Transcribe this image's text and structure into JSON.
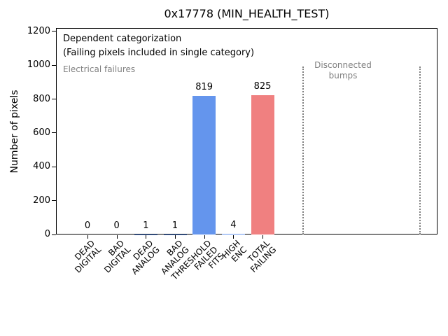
{
  "chart_data": {
    "type": "bar",
    "title": "0x17778 (MIN_HEALTH_TEST)",
    "xlabel": "",
    "ylabel": "Number of pixels",
    "categories": [
      "DEAD\nDIGITAL",
      "BAD\nDIGITAL",
      "DEAD\nANALOG",
      "BAD\nANALOG",
      "THRESHOLD\nFAILED\nFITS",
      "HIGH\nENC",
      "TOTAL\nFAILING"
    ],
    "values": [
      0,
      0,
      1,
      1,
      819,
      4,
      825
    ],
    "value_labels": [
      "0",
      "0",
      "1",
      "1",
      "819",
      "4",
      "825"
    ],
    "bar_colors": [
      "#6495ed",
      "#6495ed",
      "#6495ed",
      "#6495ed",
      "#6495ed",
      "#6495ed",
      "#f08080"
    ],
    "yticks": [
      0,
      200,
      400,
      600,
      800,
      1000,
      1200
    ],
    "ylim": [
      0,
      1220
    ],
    "grid": false,
    "legend": false,
    "region_dividers_x_data": [
      7.4,
      11.4
    ],
    "divider_line_style": "dotted",
    "annotations": {
      "dependent": {
        "line1": "Dependent categorization",
        "line2": "(Failing pixels included in single category)",
        "color": "#000000"
      },
      "electrical": {
        "text": "Electrical failures",
        "color": "#808080"
      },
      "disconnected": {
        "line1": "Disconnected",
        "line2": "bumps",
        "color": "#808080"
      }
    },
    "colors": {
      "bar_blue": "#6495ed",
      "bar_red": "#f08080",
      "annotation_gray": "#808080",
      "axis": "#000000"
    }
  }
}
